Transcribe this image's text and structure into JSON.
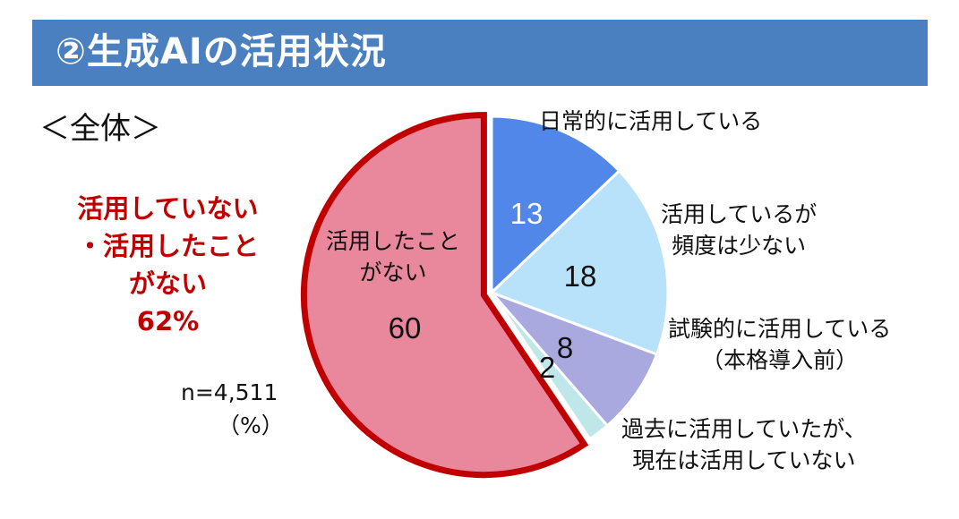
{
  "header": {
    "title": "②生成AIの活用状況"
  },
  "subtitle": "＜全体＞",
  "summary": {
    "lines": [
      "活用していない",
      "・活用したこと",
      "がない",
      "62%"
    ]
  },
  "notes": {
    "sample_size": "n=4,511",
    "unit": "（%）"
  },
  "colors": {
    "banner": "#4a7fc0",
    "highlight": "#c00000",
    "slice_daily": "#5087e8",
    "slice_infrequent": "#b8e2fa",
    "slice_trial": "#a9a8df",
    "slice_past": "#bfe6e8",
    "slice_never": "#e9879c"
  },
  "chart_data": {
    "type": "pie",
    "start_angle": "12 o'clock",
    "direction": "clockwise",
    "labels": [
      "日常的に活用している",
      "活用しているが頻度は少ない",
      "試験的に活用している（本格導入前）",
      "過去に活用していたが、現在は活用していない",
      "活用したことがない"
    ],
    "values": [
      13,
      18,
      8,
      2,
      60
    ],
    "value_labels": [
      "13",
      "18",
      "8",
      "2",
      "60"
    ],
    "slice_colors": [
      "#5087e8",
      "#b8e2fa",
      "#a9a8df",
      "#bfe6e8",
      "#e9879c"
    ],
    "exploded_slice": "活用したことがない",
    "outside_labels": {
      "daily": [
        "日常的に活用している"
      ],
      "infrequent": [
        "活用しているが",
        "頻度は少ない"
      ],
      "trial": [
        "試験的に活用している",
        "（本格導入前）"
      ],
      "past": [
        "過去に活用していたが、",
        "現在は活用していない"
      ]
    },
    "inside_label_never": [
      "活用したこと",
      "がない"
    ]
  }
}
